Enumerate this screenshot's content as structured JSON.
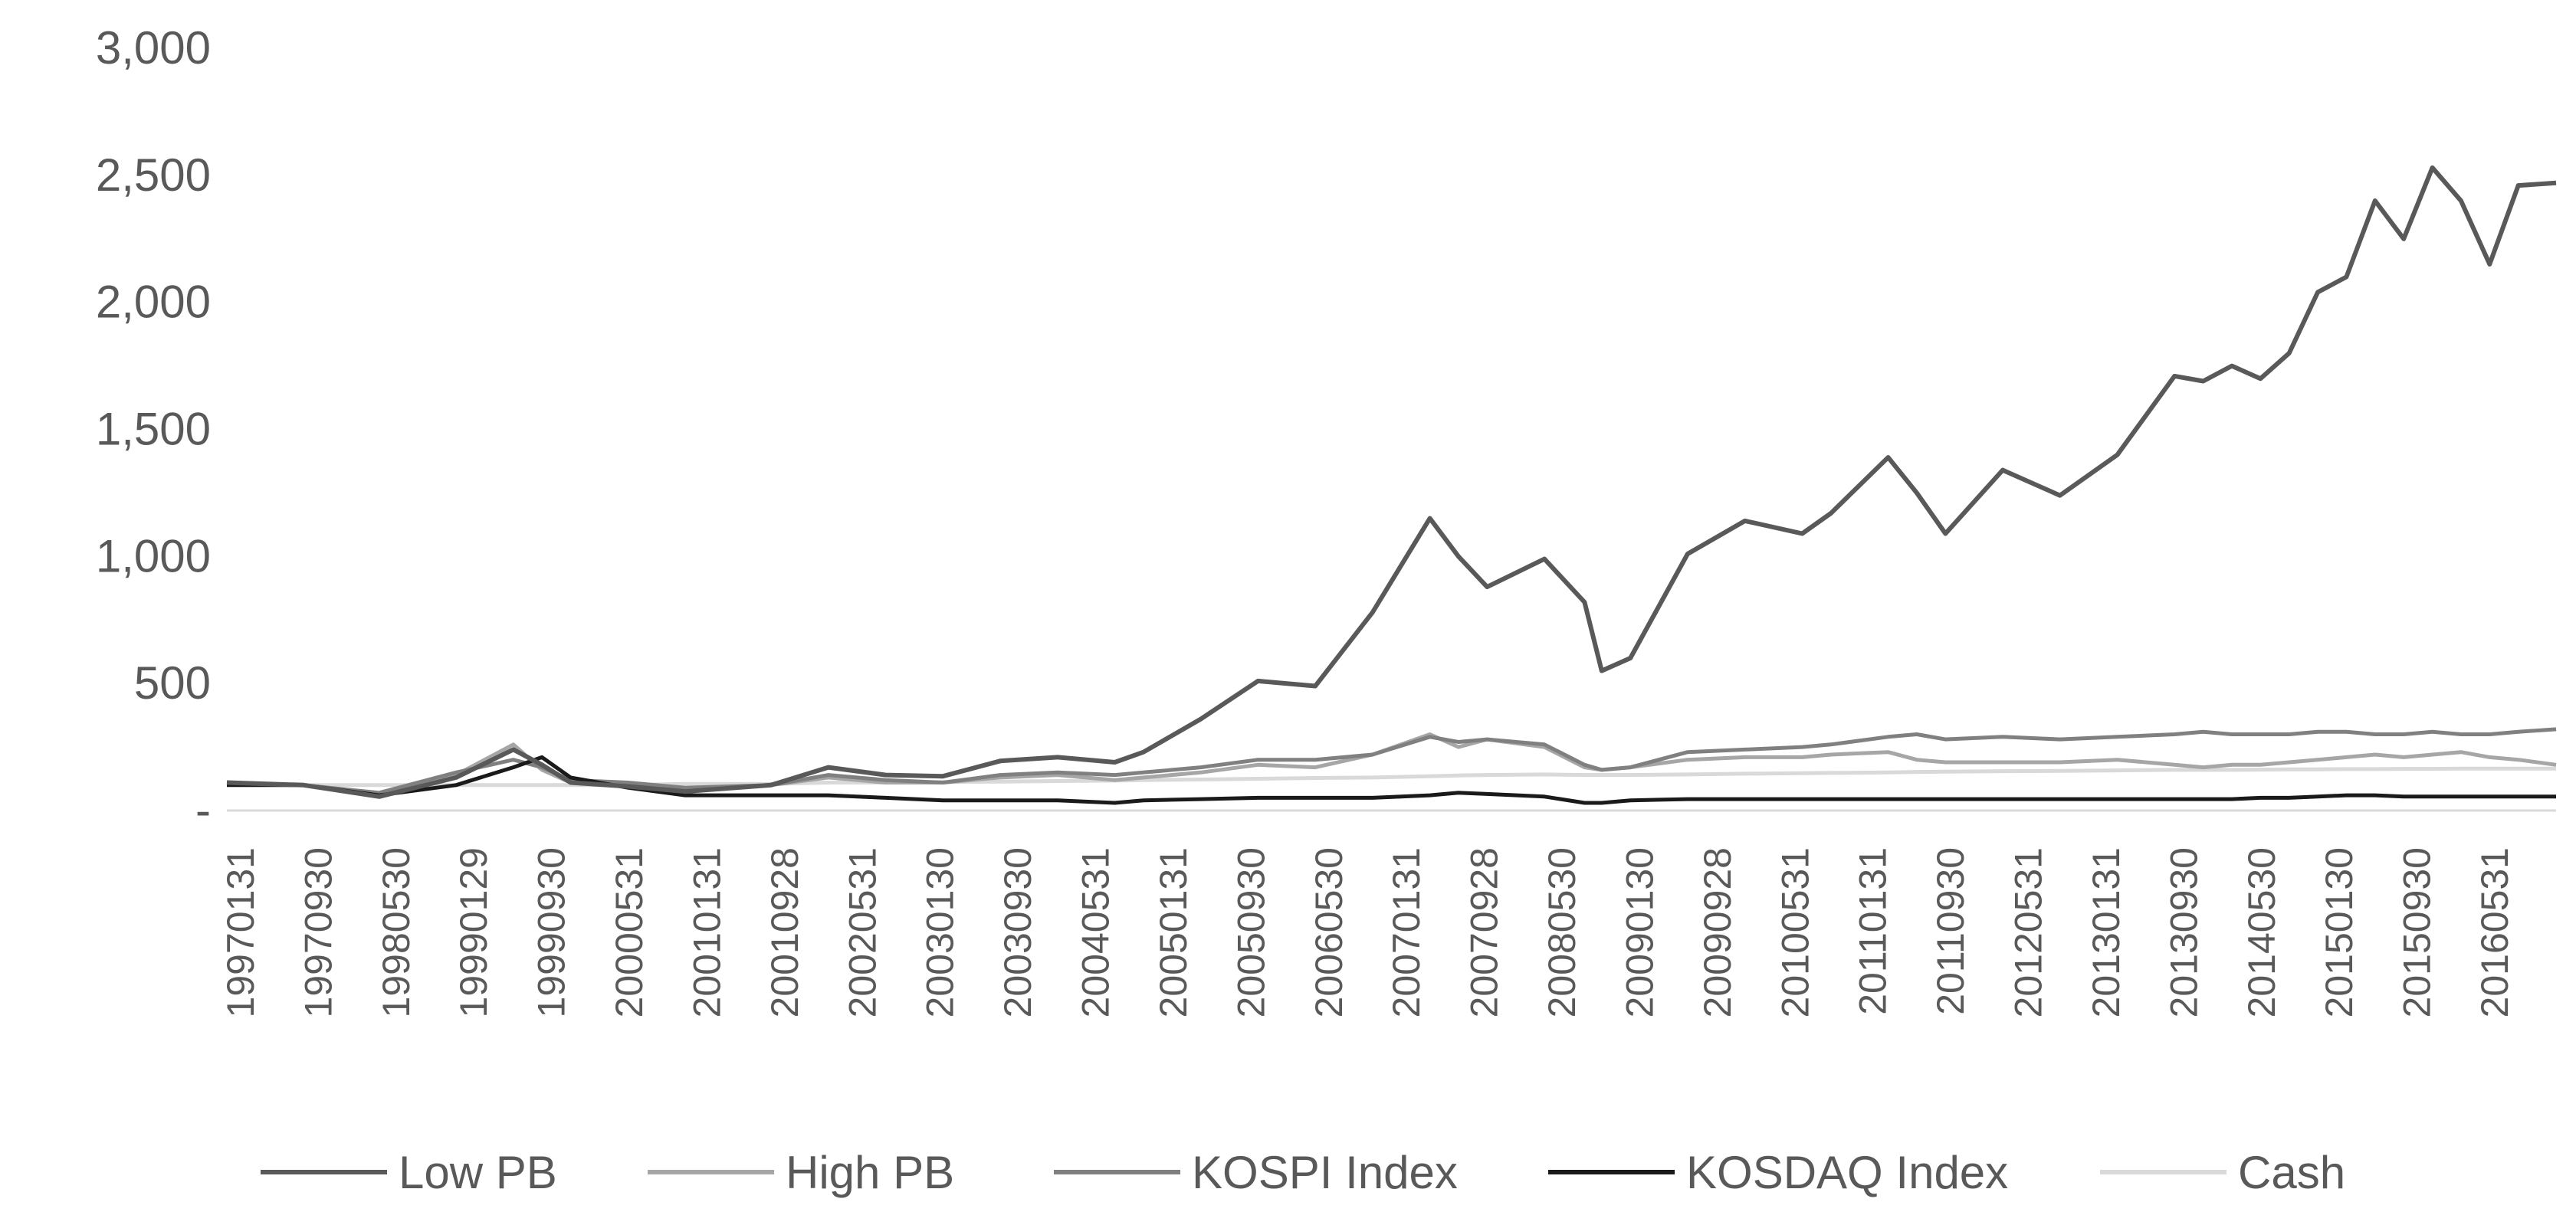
{
  "chart_data": {
    "type": "line",
    "title": "",
    "xlabel": "",
    "ylabel": "",
    "ylim": [
      0,
      3000
    ],
    "y_ticks": [
      "-",
      "500",
      "1,000",
      "1,500",
      "2,000",
      "2,500",
      "3,000"
    ],
    "grid": false,
    "legend_position": "bottom",
    "x_tick_labels": [
      "19970131",
      "19970930",
      "19980530",
      "19990129",
      "19990930",
      "20000531",
      "20010131",
      "20010928",
      "20020531",
      "20030130",
      "20030930",
      "20040531",
      "20050131",
      "20050930",
      "20060530",
      "20070131",
      "20070928",
      "20080530",
      "20090130",
      "20090928",
      "20100531",
      "20110131",
      "20110930",
      "20120531",
      "20130131",
      "20130930",
      "20140530",
      "20150130",
      "20150930",
      "20160531"
    ],
    "x": [
      1997.0,
      1997.67,
      1998.33,
      1999.0,
      1999.5,
      1999.75,
      2000.0,
      2000.5,
      2001.0,
      2001.75,
      2002.25,
      2002.75,
      2003.25,
      2003.75,
      2004.25,
      2004.75,
      2005.0,
      2005.5,
      2006.0,
      2006.5,
      2007.0,
      2007.5,
      2007.75,
      2008.0,
      2008.5,
      2008.85,
      2009.0,
      2009.25,
      2009.75,
      2010.25,
      2010.75,
      2011.0,
      2011.5,
      2011.75,
      2012.0,
      2012.5,
      2013.0,
      2013.5,
      2014.0,
      2014.25,
      2014.5,
      2014.75,
      2015.0,
      2015.25,
      2015.5,
      2015.75,
      2016.0,
      2016.25,
      2016.5,
      2016.75,
      2017.0,
      2017.33
    ],
    "series": [
      {
        "name": "Low PB",
        "color": "#595959",
        "values": [
          110,
          100,
          55,
          130,
          240,
          180,
          110,
          95,
          75,
          100,
          170,
          140,
          135,
          195,
          210,
          190,
          230,
          360,
          510,
          490,
          780,
          1150,
          1000,
          880,
          990,
          820,
          550,
          600,
          1010,
          1140,
          1090,
          1170,
          1390,
          1250,
          1090,
          1340,
          1240,
          1400,
          1710,
          1690,
          1750,
          1700,
          1800,
          2040,
          2100,
          2400,
          2250,
          2530,
          2400,
          2150,
          2460,
          2470
        ]
      },
      {
        "name": "High PB",
        "color": "#a6a6a6",
        "values": [
          110,
          100,
          60,
          140,
          260,
          160,
          110,
          100,
          80,
          100,
          130,
          110,
          110,
          130,
          140,
          120,
          130,
          150,
          180,
          170,
          220,
          300,
          250,
          280,
          250,
          170,
          160,
          170,
          200,
          210,
          210,
          220,
          230,
          200,
          190,
          190,
          190,
          200,
          180,
          170,
          180,
          180,
          190,
          200,
          210,
          220,
          210,
          220,
          230,
          210,
          200,
          180
        ]
      },
      {
        "name": "KOSPI Index",
        "color": "#808080",
        "values": [
          110,
          100,
          70,
          150,
          200,
          170,
          120,
          110,
          90,
          100,
          140,
          120,
          110,
          140,
          150,
          140,
          150,
          170,
          200,
          200,
          220,
          290,
          270,
          280,
          260,
          180,
          160,
          170,
          230,
          240,
          250,
          260,
          290,
          300,
          280,
          290,
          280,
          290,
          300,
          310,
          300,
          300,
          300,
          310,
          310,
          300,
          300,
          310,
          300,
          300,
          310,
          320
        ]
      },
      {
        "name": "KOSDAQ Index",
        "color": "#1a1a1a",
        "values": [
          100,
          100,
          60,
          100,
          170,
          210,
          130,
          90,
          60,
          60,
          60,
          50,
          40,
          40,
          40,
          30,
          40,
          45,
          50,
          50,
          50,
          60,
          70,
          65,
          55,
          30,
          30,
          40,
          45,
          45,
          45,
          45,
          45,
          45,
          45,
          45,
          45,
          45,
          45,
          45,
          45,
          50,
          50,
          55,
          60,
          60,
          55,
          55,
          55,
          55,
          55,
          55
        ]
      },
      {
        "name": "Cash",
        "color": "#d9d9d9",
        "values": [
          100,
          100,
          100,
          100,
          100,
          100,
          100,
          100,
          105,
          105,
          110,
          110,
          112,
          114,
          116,
          118,
          120,
          122,
          125,
          128,
          130,
          135,
          138,
          140,
          142,
          140,
          140,
          140,
          142,
          145,
          147,
          148,
          150,
          152,
          153,
          155,
          156,
          158,
          160,
          160,
          160,
          161,
          162,
          162,
          163,
          163,
          164,
          164,
          165,
          165,
          165,
          165
        ]
      }
    ]
  }
}
